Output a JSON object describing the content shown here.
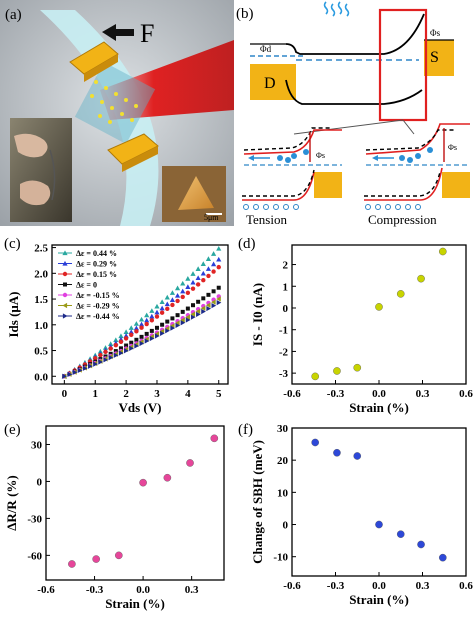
{
  "panels": {
    "a": {
      "letter": "(a)",
      "force_label": "F",
      "scale_label": "5μm"
    },
    "b": {
      "letter": "(b)",
      "label_D": "D",
      "label_S": "S",
      "phi_d": "Φd",
      "phi_s": "Φs",
      "tension_label": "Tension",
      "compression_label": "Compression"
    }
  },
  "colors": {
    "contact_gold": "#f2b316",
    "red_box": "#e02020",
    "beam_red": "#d61c1c",
    "dash_blue": "#2f86c8",
    "dot_blue": "#2a8fd6",
    "pink": "#e6469a",
    "yellow_green": "#c8d400",
    "blue": "#2d48d8"
  },
  "chart_data": [
    {
      "id": "c",
      "type": "line",
      "letter": "(c)",
      "xlabel": "Vds (V)",
      "ylabel": "Ids (μA)",
      "xlim": [
        -0.4,
        5.3
      ],
      "ylim": [
        -0.15,
        2.55
      ],
      "xticks": [
        0,
        1,
        2,
        3,
        4,
        5
      ],
      "yticks": [
        0.0,
        0.5,
        1.0,
        1.5,
        2.0,
        2.5
      ],
      "ytick_labels": [
        "0.0",
        "0.5",
        "1.0",
        "1.5",
        "2.0",
        "2.5"
      ],
      "legend_position": "top-left",
      "series": [
        {
          "name": "Δε = 0.44 %",
          "color": "#2aa8a0",
          "marker": "tri-up",
          "end": 2.48
        },
        {
          "name": "Δε = 0.29 %",
          "color": "#2a3fd8",
          "marker": "tri-up",
          "end": 2.27
        },
        {
          "name": "Δε = 0.15 %",
          "color": "#e02424",
          "marker": "circle",
          "end": 2.12
        },
        {
          "name": "Δε = 0",
          "color": "#111111",
          "marker": "square",
          "end": 1.72
        },
        {
          "name": "Δε = -0.15 %",
          "color": "#e040e0",
          "marker": "circle",
          "end": 1.55
        },
        {
          "name": "Δε = -0.29 %",
          "color": "#9a9a18",
          "marker": "tri-left",
          "end": 1.5
        },
        {
          "name": "Δε = -0.44 %",
          "color": "#1c2a8a",
          "marker": "tri-right",
          "end": 1.43
        }
      ]
    },
    {
      "id": "d",
      "type": "scatter",
      "letter": "(d)",
      "xlabel": "Strain (%)",
      "ylabel": "IS - I0 (nA)",
      "xlim": [
        -0.6,
        0.6
      ],
      "ylim": [
        -3.5,
        2.9
      ],
      "xticks": [
        -0.6,
        -0.3,
        0.0,
        0.3,
        0.6
      ],
      "xtick_labels": [
        "-0.6",
        "-0.3",
        "0.0",
        "0.3",
        "0.6"
      ],
      "yticks": [
        -3,
        -2,
        -1,
        0,
        1,
        2
      ],
      "color": "#c8d400",
      "x": [
        -0.44,
        -0.29,
        -0.15,
        0.0,
        0.15,
        0.29,
        0.44
      ],
      "y": [
        -3.15,
        -2.9,
        -2.75,
        0.05,
        0.65,
        1.35,
        2.6
      ]
    },
    {
      "id": "e",
      "type": "scatter",
      "letter": "(e)",
      "xlabel": "Strain (%)",
      "ylabel": "ΔR/R (%)",
      "xlim": [
        -0.6,
        0.5
      ],
      "ylim": [
        -80,
        45
      ],
      "xticks": [
        -0.6,
        -0.3,
        0.0,
        0.3
      ],
      "xtick_labels": [
        "-0.6",
        "-0.3",
        "0.0",
        "0.3"
      ],
      "yticks": [
        30,
        0,
        -30,
        -60
      ],
      "color": "#e6469a",
      "x": [
        -0.44,
        -0.29,
        -0.15,
        0.0,
        0.15,
        0.29,
        0.44
      ],
      "y": [
        -67,
        -63,
        -60,
        -1,
        3,
        15,
        35
      ]
    },
    {
      "id": "f",
      "type": "scatter",
      "letter": "(f)",
      "xlabel": "Strain (%)",
      "ylabel": "Change of SBH (meV)",
      "xlim": [
        -0.6,
        0.6
      ],
      "ylim": [
        -16,
        30
      ],
      "xticks": [
        -0.6,
        -0.3,
        0.0,
        0.3,
        0.6
      ],
      "xtick_labels": [
        "-0.6",
        "-0.3",
        "0.0",
        "0.3",
        "0.6"
      ],
      "yticks": [
        -10,
        0,
        10,
        20,
        30
      ],
      "color": "#2d48d8",
      "x": [
        -0.44,
        -0.29,
        -0.15,
        0.0,
        0.15,
        0.29,
        0.44
      ],
      "y": [
        25.5,
        22.3,
        21.3,
        0.0,
        -3.0,
        -6.2,
        -10.3
      ]
    }
  ]
}
